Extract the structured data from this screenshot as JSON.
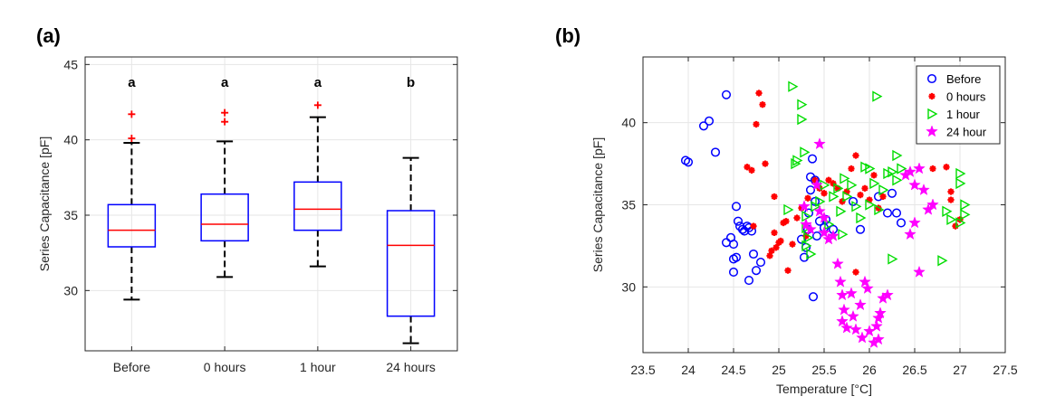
{
  "chart_data": [
    {
      "panel_label": "(a)",
      "type": "box",
      "xlabel": "",
      "ylabel": "Series Capacitance [pF]",
      "ylim": [
        26,
        45.5
      ],
      "yticks": [
        30,
        35,
        40,
        45
      ],
      "grid": true,
      "colors": {
        "box": "#0000ff",
        "median": "#ff0000",
        "whisker": "#000000",
        "outlier": "#ff0000"
      },
      "categories": [
        "Before",
        "0 hours",
        "1 hour",
        "24 hours"
      ],
      "significance": [
        "a",
        "a",
        "a",
        "b"
      ],
      "boxes": [
        {
          "whisker_low": 29.4,
          "q1": 32.9,
          "median": 34.0,
          "q3": 35.7,
          "whisker_high": 39.8,
          "outliers": [
            40.1,
            41.7
          ]
        },
        {
          "whisker_low": 30.9,
          "q1": 33.3,
          "median": 34.4,
          "q3": 36.4,
          "whisker_high": 39.9,
          "outliers": [
            41.2,
            41.8
          ]
        },
        {
          "whisker_low": 31.6,
          "q1": 34.0,
          "median": 35.4,
          "q3": 37.2,
          "whisker_high": 41.5,
          "outliers": [
            42.3
          ]
        },
        {
          "whisker_low": 26.5,
          "q1": 28.3,
          "median": 33.0,
          "q3": 35.3,
          "whisker_high": 38.8,
          "outliers": []
        }
      ]
    },
    {
      "panel_label": "(b)",
      "type": "scatter",
      "xlabel": "Temperature [°C]",
      "ylabel": "Series Capacitance [pF]",
      "xlim": [
        23.5,
        27.5
      ],
      "ylim": [
        26,
        44
      ],
      "xticks": [
        23.5,
        24,
        24.5,
        25,
        25.5,
        26,
        26.5,
        27,
        27.5
      ],
      "yticks": [
        30,
        35,
        40
      ],
      "grid": true,
      "legend_position": "top-right",
      "series": [
        {
          "name": "Before",
          "marker": "circle",
          "color": "#0000ff",
          "points": [
            [
              23.97,
              37.7
            ],
            [
              24.0,
              37.6
            ],
            [
              24.17,
              39.8
            ],
            [
              24.23,
              40.1
            ],
            [
              24.3,
              38.2
            ],
            [
              24.42,
              41.7
            ],
            [
              24.42,
              32.7
            ],
            [
              24.47,
              33.0
            ],
            [
              24.5,
              32.6
            ],
            [
              24.5,
              31.7
            ],
            [
              24.53,
              31.8
            ],
            [
              24.5,
              30.9
            ],
            [
              24.55,
              34.0
            ],
            [
              24.53,
              34.9
            ],
            [
              24.57,
              33.7
            ],
            [
              24.6,
              33.5
            ],
            [
              24.62,
              33.4
            ],
            [
              24.65,
              33.7
            ],
            [
              24.67,
              33.6
            ],
            [
              24.67,
              30.4
            ],
            [
              24.7,
              33.4
            ],
            [
              24.72,
              32.0
            ],
            [
              24.75,
              31.0
            ],
            [
              24.8,
              31.5
            ],
            [
              25.25,
              32.9
            ],
            [
              25.28,
              31.8
            ],
            [
              25.3,
              32.4
            ],
            [
              25.32,
              33.5
            ],
            [
              25.33,
              34.5
            ],
            [
              25.35,
              35.9
            ],
            [
              25.35,
              36.7
            ],
            [
              25.37,
              37.8
            ],
            [
              25.4,
              36.5
            ],
            [
              25.4,
              35.2
            ],
            [
              25.42,
              33.1
            ],
            [
              25.45,
              34.0
            ],
            [
              25.38,
              29.4
            ],
            [
              25.5,
              33.6
            ],
            [
              25.52,
              34.1
            ],
            [
              25.6,
              33.5
            ],
            [
              25.82,
              35.2
            ],
            [
              25.9,
              33.5
            ],
            [
              26.1,
              35.5
            ],
            [
              26.2,
              34.5
            ],
            [
              26.25,
              35.7
            ],
            [
              26.3,
              34.5
            ],
            [
              26.35,
              33.9
            ]
          ]
        },
        {
          "name": "0 hours",
          "marker": "asterisk",
          "color": "#ff0000",
          "points": [
            [
              24.65,
              37.3
            ],
            [
              24.7,
              37.1
            ],
            [
              24.72,
              33.7
            ],
            [
              24.75,
              39.9
            ],
            [
              24.78,
              41.8
            ],
            [
              24.82,
              41.1
            ],
            [
              24.85,
              37.5
            ],
            [
              24.9,
              31.9
            ],
            [
              24.92,
              32.2
            ],
            [
              24.95,
              35.5
            ],
            [
              24.95,
              33.3
            ],
            [
              24.97,
              32.4
            ],
            [
              25.0,
              32.7
            ],
            [
              25.02,
              32.8
            ],
            [
              25.05,
              33.9
            ],
            [
              25.08,
              34.0
            ],
            [
              25.1,
              31.0
            ],
            [
              25.15,
              32.6
            ],
            [
              25.2,
              34.2
            ],
            [
              25.25,
              34.8
            ],
            [
              25.3,
              33.1
            ],
            [
              25.32,
              35.4
            ],
            [
              25.4,
              36.5
            ],
            [
              25.45,
              36.0
            ],
            [
              25.5,
              35.7
            ],
            [
              25.55,
              36.5
            ],
            [
              25.6,
              36.3
            ],
            [
              25.65,
              36.0
            ],
            [
              25.7,
              35.2
            ],
            [
              25.75,
              35.8
            ],
            [
              25.8,
              37.2
            ],
            [
              25.85,
              38.0
            ],
            [
              25.9,
              35.6
            ],
            [
              25.95,
              36.0
            ],
            [
              26.0,
              35.3
            ],
            [
              26.05,
              36.8
            ],
            [
              26.1,
              34.8
            ],
            [
              26.15,
              35.5
            ],
            [
              26.7,
              37.2
            ],
            [
              26.85,
              37.3
            ],
            [
              26.9,
              35.8
            ],
            [
              26.9,
              35.3
            ],
            [
              27.0,
              34.1
            ],
            [
              26.95,
              33.7
            ],
            [
              25.85,
              30.9
            ]
          ]
        },
        {
          "name": "1 hour",
          "marker": "triangle-right",
          "color": "#00dd00",
          "points": [
            [
              25.1,
              34.7
            ],
            [
              25.15,
              42.2
            ],
            [
              25.18,
              37.5
            ],
            [
              25.2,
              37.7
            ],
            [
              25.25,
              41.1
            ],
            [
              25.25,
              40.2
            ],
            [
              25.28,
              38.2
            ],
            [
              25.3,
              34.3
            ],
            [
              25.3,
              33.6
            ],
            [
              25.32,
              33.0
            ],
            [
              25.3,
              32.5
            ],
            [
              25.35,
              32.0
            ],
            [
              25.4,
              34.9
            ],
            [
              25.45,
              35.2
            ],
            [
              25.5,
              36.2
            ],
            [
              25.55,
              33.8
            ],
            [
              25.6,
              35.5
            ],
            [
              25.65,
              36.0
            ],
            [
              25.68,
              34.6
            ],
            [
              25.7,
              33.2
            ],
            [
              25.72,
              36.6
            ],
            [
              25.75,
              35.5
            ],
            [
              25.8,
              36.2
            ],
            [
              25.85,
              34.9
            ],
            [
              25.9,
              34.2
            ],
            [
              25.95,
              37.3
            ],
            [
              26.0,
              37.2
            ],
            [
              26.0,
              35.0
            ],
            [
              26.05,
              36.3
            ],
            [
              26.08,
              41.6
            ],
            [
              26.1,
              34.7
            ],
            [
              26.15,
              35.9
            ],
            [
              26.2,
              36.9
            ],
            [
              26.25,
              37.0
            ],
            [
              26.3,
              38.0
            ],
            [
              26.3,
              36.5
            ],
            [
              26.25,
              31.7
            ],
            [
              26.35,
              37.2
            ],
            [
              26.8,
              31.6
            ],
            [
              26.85,
              34.6
            ],
            [
              26.9,
              34.1
            ],
            [
              27.0,
              36.9
            ],
            [
              27.0,
              36.3
            ],
            [
              27.05,
              35.0
            ],
            [
              27.05,
              34.4
            ],
            [
              27.0,
              33.9
            ]
          ]
        },
        {
          "name": "24 hour",
          "marker": "star",
          "color": "#ff00ff",
          "points": [
            [
              25.28,
              34.9
            ],
            [
              25.3,
              33.8
            ],
            [
              25.35,
              33.5
            ],
            [
              25.45,
              38.7
            ],
            [
              25.42,
              36.2
            ],
            [
              25.45,
              34.6
            ],
            [
              25.5,
              34.2
            ],
            [
              25.5,
              33.3
            ],
            [
              25.55,
              32.9
            ],
            [
              25.6,
              33.1
            ],
            [
              25.65,
              31.4
            ],
            [
              25.68,
              30.3
            ],
            [
              25.7,
              29.5
            ],
            [
              25.72,
              28.6
            ],
            [
              25.7,
              27.9
            ],
            [
              25.75,
              27.5
            ],
            [
              25.8,
              29.6
            ],
            [
              25.82,
              28.2
            ],
            [
              25.85,
              27.4
            ],
            [
              25.9,
              28.9
            ],
            [
              25.92,
              26.9
            ],
            [
              25.95,
              30.3
            ],
            [
              25.98,
              29.9
            ],
            [
              26.0,
              27.3
            ],
            [
              26.05,
              26.6
            ],
            [
              26.08,
              27.6
            ],
            [
              26.1,
              26.8
            ],
            [
              26.12,
              28.4
            ],
            [
              26.15,
              29.3
            ],
            [
              26.2,
              29.5
            ],
            [
              26.1,
              28.1
            ],
            [
              26.4,
              36.8
            ],
            [
              26.45,
              37.0
            ],
            [
              26.5,
              36.2
            ],
            [
              26.55,
              37.2
            ],
            [
              26.6,
              35.9
            ],
            [
              26.65,
              34.7
            ],
            [
              26.7,
              35.0
            ],
            [
              26.5,
              33.9
            ],
            [
              26.45,
              33.2
            ],
            [
              26.55,
              30.9
            ]
          ]
        }
      ]
    }
  ]
}
